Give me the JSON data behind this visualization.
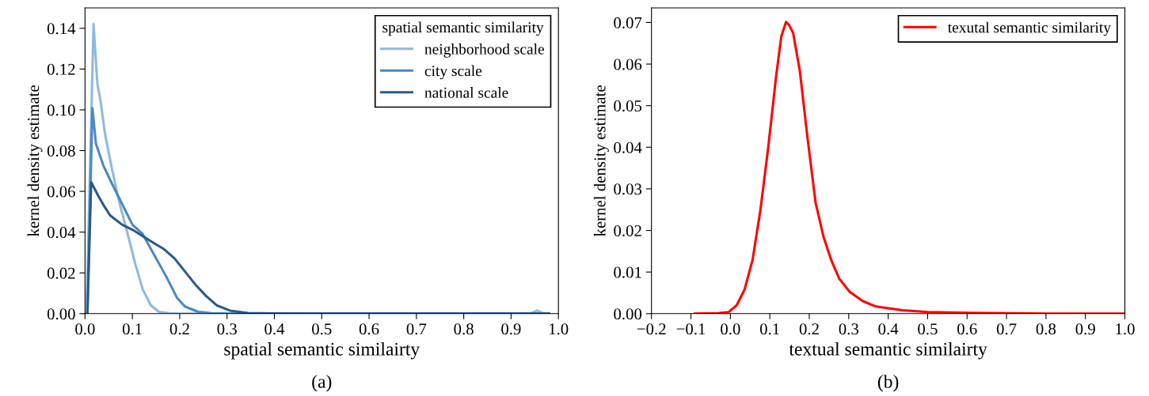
{
  "chart_data": [
    {
      "type": "line",
      "xlabel": "spatial semantic similairty",
      "ylabel": "kernel density estimate",
      "legend_title": "spatial semantic similarity",
      "legend": "top right",
      "annotations": [
        "(a)"
      ],
      "xlim": [
        0.0,
        1.0
      ],
      "xticks": [
        {
          "value": 0,
          "label": "0.0"
        },
        0.1,
        0.2,
        0.3,
        0.4,
        0.5,
        0.6,
        0.7,
        0.8,
        0.9,
        {
          "value": 1,
          "label": "1.0"
        }
      ],
      "ylim": [
        0.0,
        0.15
      ],
      "yticks": [
        {
          "value": 0,
          "label": "0.00"
        },
        {
          "value": 0.02,
          "label": "0.02"
        },
        {
          "value": 0.04,
          "label": "0.04"
        },
        {
          "value": 0.06,
          "label": "0.06"
        },
        {
          "value": 0.08,
          "label": "0.08"
        },
        {
          "value": 0.1,
          "label": "0.10"
        },
        {
          "value": 0.12,
          "label": "0.12"
        },
        {
          "value": 0.14,
          "label": "0.14"
        }
      ],
      "series": [
        {
          "name": "neighborhood scale",
          "color": "#8fb9df",
          "x": [
            0.003,
            0.018,
            0.026,
            0.033,
            0.042,
            0.056,
            0.072,
            0.089,
            0.106,
            0.122,
            0.139,
            0.156,
            0.178,
            0.2,
            0.3,
            0.5,
            0.7,
            0.9,
            0.94,
            0.955,
            0.97,
            0.98
          ],
          "values": [
            0,
            0.142,
            0.113,
            0.104,
            0.0885,
            0.072,
            0.055,
            0.04,
            0.0246,
            0.0118,
            0.0041,
            0.0009,
            0.0002,
            0,
            0,
            0,
            0,
            0,
            0,
            0.0015,
            0,
            0
          ]
        },
        {
          "name": "city scale",
          "color": "#4a89c4",
          "x": [
            0.005,
            0.0156,
            0.023,
            0.039,
            0.056,
            0.078,
            0.1,
            0.122,
            0.144,
            0.172,
            0.194,
            0.211,
            0.239,
            0.267,
            0.3,
            0.5,
            0.7,
            0.9,
            0.98
          ],
          "values": [
            0,
            0.1007,
            0.0834,
            0.0725,
            0.0642,
            0.054,
            0.0437,
            0.039,
            0.0297,
            0.018,
            0.0079,
            0.0035,
            0.0009,
            0.0002,
            0,
            0,
            0,
            0,
            0
          ]
        },
        {
          "name": "national scale",
          "color": "#2a5a8a",
          "x": [
            0.005,
            0.013,
            0.028,
            0.039,
            0.053,
            0.078,
            0.1,
            0.122,
            0.144,
            0.167,
            0.189,
            0.211,
            0.233,
            0.256,
            0.278,
            0.306,
            0.344,
            0.4,
            0.5,
            0.7,
            0.9,
            0.98
          ],
          "values": [
            0,
            0.0645,
            0.0578,
            0.0533,
            0.0482,
            0.0437,
            0.0412,
            0.038,
            0.0348,
            0.0316,
            0.0271,
            0.0207,
            0.0143,
            0.0086,
            0.0041,
            0.0015,
            0.0003,
            0.0001,
            0,
            0,
            0,
            0
          ]
        }
      ]
    },
    {
      "type": "line",
      "xlabel": "textual semantic similairty",
      "ylabel": "kernel density estimate",
      "legend": "top right",
      "annotations": [
        "(b)"
      ],
      "xlim": [
        -0.2,
        1.0
      ],
      "xticks": [
        {
          "value": -0.2,
          "label": "−0.2"
        },
        {
          "value": -0.1,
          "label": "−0.1"
        },
        {
          "value": 0,
          "label": "0.0"
        },
        0.1,
        0.2,
        0.3,
        0.4,
        0.5,
        0.6,
        0.7,
        0.8,
        0.9,
        {
          "value": 1,
          "label": "1.0"
        }
      ],
      "ylim": [
        0.0,
        0.0735
      ],
      "yticks": [
        {
          "value": 0,
          "label": "0.00"
        },
        0.01,
        0.02,
        0.03,
        0.04,
        0.05,
        0.06,
        0.07
      ],
      "series": [
        {
          "name": "texutal semantic similarity",
          "color": "#ff0000",
          "x": [
            -0.09,
            -0.031,
            -0.004,
            0.016,
            0.036,
            0.056,
            0.076,
            0.096,
            0.116,
            0.129,
            0.141,
            0.149,
            0.159,
            0.176,
            0.196,
            0.216,
            0.236,
            0.256,
            0.276,
            0.303,
            0.336,
            0.369,
            0.436,
            0.5,
            0.6,
            0.7,
            0.8,
            0.9,
            1.0
          ],
          "values": [
            0,
            0.0001,
            0.0004,
            0.002,
            0.0058,
            0.0128,
            0.0248,
            0.04,
            0.0571,
            0.0666,
            0.0701,
            0.0694,
            0.0675,
            0.0584,
            0.0419,
            0.0267,
            0.0185,
            0.0128,
            0.0084,
            0.0052,
            0.003,
            0.0017,
            0.0008,
            0.0004,
            0.0002,
            0.0001,
            0,
            0,
            0
          ]
        }
      ]
    }
  ]
}
